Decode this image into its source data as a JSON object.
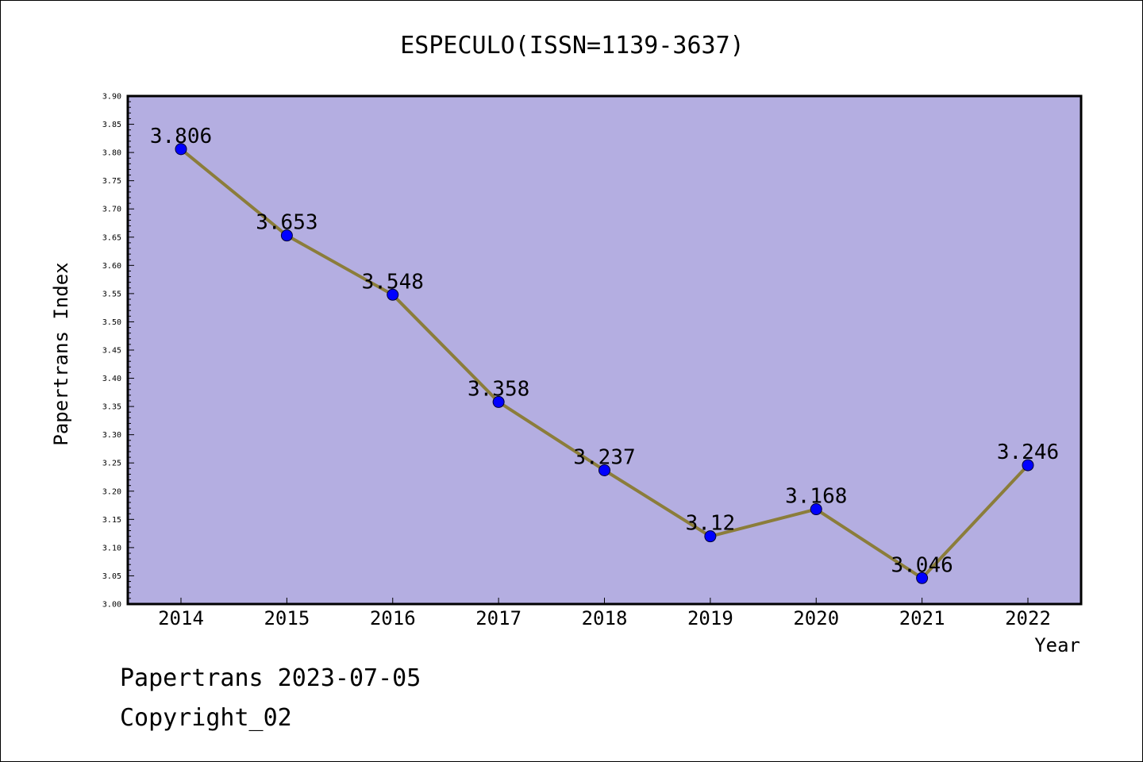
{
  "chart_data": {
    "type": "line",
    "title": "ESPECULO(ISSN=1139-3637)",
    "xlabel": "Year",
    "ylabel": "Papertrans Index",
    "categories": [
      "2014",
      "2015",
      "2016",
      "2017",
      "2018",
      "2019",
      "2020",
      "2021",
      "2022"
    ],
    "series": [
      {
        "values": [
          3.806,
          3.653,
          3.548,
          3.358,
          3.237,
          3.12,
          3.168,
          3.046,
          3.246
        ],
        "labels": [
          "3.806",
          "3.653",
          "3.548",
          "3.358",
          "3.237",
          "3.12",
          "3.168",
          "3.046",
          "3.246"
        ]
      }
    ],
    "ylim": [
      3.0,
      3.9
    ],
    "y_ticks": [
      "3.00",
      "3.05",
      "3.10",
      "3.15",
      "3.20",
      "3.25",
      "3.30",
      "3.35",
      "3.40",
      "3.45",
      "3.50",
      "3.55",
      "3.60",
      "3.65",
      "3.70",
      "3.75",
      "3.80",
      "3.85",
      "3.90"
    ],
    "grid": false,
    "colors": {
      "plot_background": "#b4aee1",
      "line": "#8b7d3a",
      "marker": "#0000ff",
      "axis": "#000000"
    }
  },
  "footer": {
    "line1": "Papertrans 2023-07-05",
    "line2": "Copyright_02"
  }
}
